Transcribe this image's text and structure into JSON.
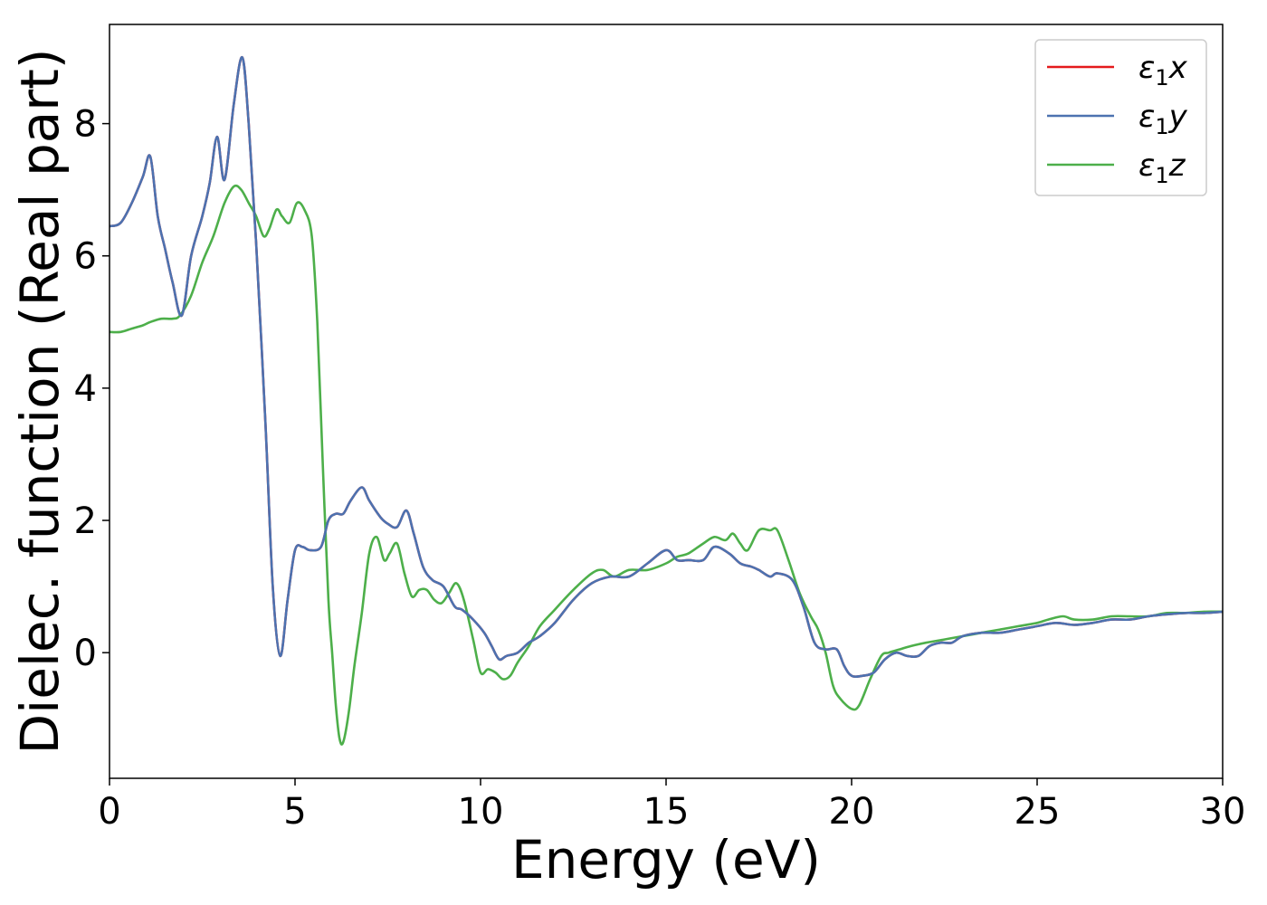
{
  "chart_data": {
    "type": "line",
    "title": "",
    "xlabel": "Energy (eV)",
    "ylabel": "Dielec. function (Real part)",
    "xlim": [
      0,
      30
    ],
    "ylim": [
      -1.9,
      9.5
    ],
    "xticks": [
      0,
      5,
      10,
      15,
      20,
      25,
      30
    ],
    "yticks": [
      0,
      2,
      4,
      6,
      8
    ],
    "grid": false,
    "legend": "top-right",
    "series": [
      {
        "name": "ε1x",
        "legend_main": "ε",
        "legend_sub": "1",
        "legend_tail": "x",
        "color": "#e41a1c",
        "x": [
          0,
          0.3,
          0.6,
          0.9,
          1.1,
          1.3,
          1.5,
          1.7,
          1.95,
          2.2,
          2.5,
          2.7,
          2.9,
          3.1,
          3.35,
          3.58,
          3.75,
          3.95,
          4.2,
          4.4,
          4.6,
          4.8,
          5.0,
          5.2,
          5.4,
          5.7,
          5.9,
          6.1,
          6.3,
          6.5,
          6.8,
          7.0,
          7.3,
          7.5,
          7.75,
          8.0,
          8.2,
          8.45,
          8.7,
          9.0,
          9.3,
          9.5,
          9.8,
          10.1,
          10.3,
          10.5,
          10.7,
          11.0,
          11.3,
          11.6,
          12.0,
          12.5,
          13.0,
          13.5,
          14.0,
          14.5,
          15.0,
          15.3,
          15.6,
          16.0,
          16.3,
          16.7,
          17.0,
          17.3,
          17.5,
          17.8,
          18.0,
          18.4,
          18.7,
          19.0,
          19.3,
          19.6,
          19.8,
          20.0,
          20.3,
          20.6,
          20.9,
          21.2,
          21.5,
          21.8,
          22.1,
          22.4,
          22.7,
          23.0,
          23.5,
          24.0,
          24.5,
          25.0,
          25.5,
          26.0,
          26.5,
          27.0,
          27.5,
          28.0,
          28.5,
          29.0,
          29.5,
          30.0
        ],
        "y": [
          6.45,
          6.5,
          6.8,
          7.2,
          7.5,
          6.6,
          6.1,
          5.6,
          5.1,
          6.0,
          6.6,
          7.1,
          7.8,
          7.15,
          8.3,
          9.0,
          8.0,
          6.2,
          3.5,
          1.0,
          -0.05,
          0.8,
          1.55,
          1.6,
          1.55,
          1.6,
          2.0,
          2.1,
          2.1,
          2.3,
          2.5,
          2.3,
          2.05,
          1.95,
          1.9,
          2.15,
          1.8,
          1.3,
          1.1,
          1.0,
          0.7,
          0.65,
          0.5,
          0.3,
          0.1,
          -0.1,
          -0.05,
          0.0,
          0.15,
          0.25,
          0.45,
          0.8,
          1.05,
          1.15,
          1.15,
          1.35,
          1.55,
          1.4,
          1.4,
          1.4,
          1.6,
          1.5,
          1.35,
          1.3,
          1.25,
          1.15,
          1.2,
          1.1,
          0.7,
          0.15,
          0.05,
          0.05,
          -0.2,
          -0.35,
          -0.35,
          -0.3,
          -0.1,
          0.0,
          -0.05,
          -0.05,
          0.1,
          0.15,
          0.15,
          0.25,
          0.3,
          0.3,
          0.35,
          0.4,
          0.45,
          0.42,
          0.45,
          0.5,
          0.5,
          0.55,
          0.58,
          0.6,
          0.6,
          0.62
        ]
      },
      {
        "name": "ε1y",
        "legend_main": "ε",
        "legend_sub": "1",
        "legend_tail": "y",
        "color": "#4c72b0",
        "x": [
          0,
          0.3,
          0.6,
          0.9,
          1.1,
          1.3,
          1.5,
          1.7,
          1.95,
          2.2,
          2.5,
          2.7,
          2.9,
          3.1,
          3.35,
          3.58,
          3.75,
          3.95,
          4.2,
          4.4,
          4.6,
          4.8,
          5.0,
          5.2,
          5.4,
          5.7,
          5.9,
          6.1,
          6.3,
          6.5,
          6.8,
          7.0,
          7.3,
          7.5,
          7.75,
          8.0,
          8.2,
          8.45,
          8.7,
          9.0,
          9.3,
          9.5,
          9.8,
          10.1,
          10.3,
          10.5,
          10.7,
          11.0,
          11.3,
          11.6,
          12.0,
          12.5,
          13.0,
          13.5,
          14.0,
          14.5,
          15.0,
          15.3,
          15.6,
          16.0,
          16.3,
          16.7,
          17.0,
          17.3,
          17.5,
          17.8,
          18.0,
          18.4,
          18.7,
          19.0,
          19.3,
          19.6,
          19.8,
          20.0,
          20.3,
          20.6,
          20.9,
          21.2,
          21.5,
          21.8,
          22.1,
          22.4,
          22.7,
          23.0,
          23.5,
          24.0,
          24.5,
          25.0,
          25.5,
          26.0,
          26.5,
          27.0,
          27.5,
          28.0,
          28.5,
          29.0,
          29.5,
          30.0
        ],
        "y": [
          6.45,
          6.5,
          6.8,
          7.2,
          7.5,
          6.6,
          6.1,
          5.6,
          5.1,
          6.0,
          6.6,
          7.1,
          7.8,
          7.15,
          8.3,
          9.0,
          8.0,
          6.2,
          3.5,
          1.0,
          -0.05,
          0.8,
          1.55,
          1.6,
          1.55,
          1.6,
          2.0,
          2.1,
          2.1,
          2.3,
          2.5,
          2.3,
          2.05,
          1.95,
          1.9,
          2.15,
          1.8,
          1.3,
          1.1,
          1.0,
          0.7,
          0.65,
          0.5,
          0.3,
          0.1,
          -0.1,
          -0.05,
          0.0,
          0.15,
          0.25,
          0.45,
          0.8,
          1.05,
          1.15,
          1.15,
          1.35,
          1.55,
          1.4,
          1.4,
          1.4,
          1.6,
          1.5,
          1.35,
          1.3,
          1.25,
          1.15,
          1.2,
          1.1,
          0.7,
          0.15,
          0.05,
          0.05,
          -0.2,
          -0.35,
          -0.35,
          -0.3,
          -0.1,
          0.0,
          -0.05,
          -0.05,
          0.1,
          0.15,
          0.15,
          0.25,
          0.3,
          0.3,
          0.35,
          0.4,
          0.45,
          0.42,
          0.45,
          0.5,
          0.5,
          0.55,
          0.58,
          0.6,
          0.6,
          0.62
        ]
      },
      {
        "name": "ε1z",
        "legend_main": "ε",
        "legend_sub": "1",
        "legend_tail": "z",
        "color": "#4daf4a",
        "x": [
          0,
          0.3,
          0.6,
          0.9,
          1.1,
          1.4,
          1.7,
          1.9,
          2.2,
          2.5,
          2.8,
          3.1,
          3.35,
          3.55,
          3.75,
          3.95,
          4.15,
          4.3,
          4.5,
          4.65,
          4.85,
          5.05,
          5.25,
          5.45,
          5.6,
          5.75,
          5.9,
          6.0,
          6.1,
          6.2,
          6.3,
          6.45,
          6.6,
          6.8,
          7.0,
          7.2,
          7.4,
          7.55,
          7.75,
          7.95,
          8.15,
          8.35,
          8.55,
          8.75,
          8.95,
          9.15,
          9.35,
          9.55,
          9.8,
          10.0,
          10.2,
          10.4,
          10.6,
          10.8,
          11.0,
          11.3,
          11.6,
          12.0,
          12.5,
          13.0,
          13.3,
          13.6,
          14.0,
          14.5,
          15.0,
          15.3,
          15.6,
          16.0,
          16.3,
          16.6,
          16.8,
          17.0,
          17.2,
          17.5,
          17.8,
          18.0,
          18.3,
          18.6,
          18.9,
          19.1,
          19.3,
          19.5,
          19.7,
          20.0,
          20.2,
          20.5,
          20.8,
          21.0,
          21.3,
          21.6,
          22.0,
          22.5,
          23.0,
          23.5,
          24.0,
          24.5,
          25.0,
          25.3,
          25.7,
          26.0,
          26.5,
          27.0,
          27.5,
          28.0,
          28.5,
          29.0,
          29.5,
          30.0
        ],
        "y": [
          4.85,
          4.85,
          4.9,
          4.95,
          5.0,
          5.05,
          5.05,
          5.1,
          5.4,
          5.9,
          6.3,
          6.8,
          7.05,
          7.0,
          6.8,
          6.6,
          6.3,
          6.4,
          6.7,
          6.6,
          6.5,
          6.8,
          6.7,
          6.3,
          5.0,
          2.8,
          0.8,
          0.0,
          -0.8,
          -1.3,
          -1.35,
          -0.9,
          -0.2,
          0.6,
          1.5,
          1.75,
          1.4,
          1.5,
          1.65,
          1.2,
          0.85,
          0.95,
          0.95,
          0.8,
          0.75,
          0.9,
          1.05,
          0.8,
          0.2,
          -0.3,
          -0.25,
          -0.3,
          -0.4,
          -0.35,
          -0.15,
          0.1,
          0.4,
          0.65,
          0.95,
          1.2,
          1.25,
          1.15,
          1.25,
          1.25,
          1.35,
          1.45,
          1.5,
          1.65,
          1.75,
          1.7,
          1.8,
          1.65,
          1.55,
          1.85,
          1.85,
          1.85,
          1.4,
          0.9,
          0.55,
          0.35,
          0.0,
          -0.5,
          -0.7,
          -0.85,
          -0.8,
          -0.4,
          -0.05,
          0.0,
          0.05,
          0.1,
          0.15,
          0.2,
          0.25,
          0.3,
          0.35,
          0.4,
          0.45,
          0.5,
          0.55,
          0.5,
          0.5,
          0.55,
          0.55,
          0.55,
          0.6,
          0.6,
          0.62,
          0.62
        ]
      }
    ]
  }
}
